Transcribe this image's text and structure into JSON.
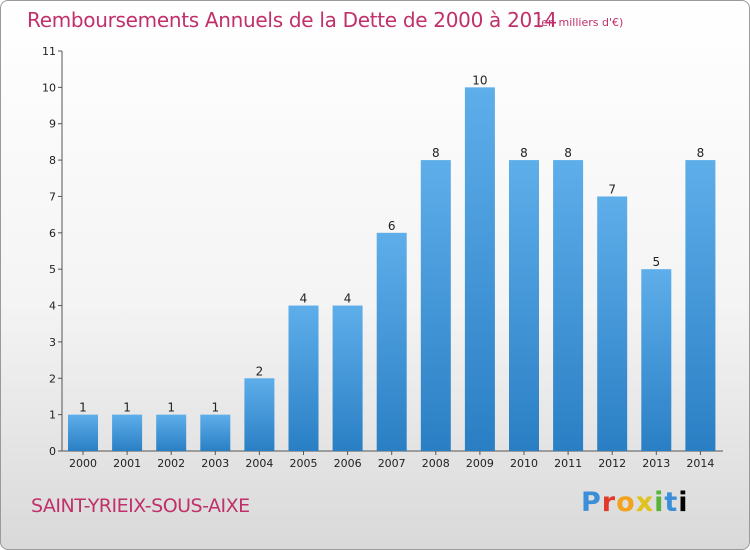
{
  "title": "Remboursements Annuels de la Dette de 2000 à 2014",
  "unit_note": "(en milliers d'€)",
  "commune": "SAINT-YRIEIX-SOUS-AIXE",
  "brand": {
    "letters": [
      "P",
      "r",
      "o",
      "x",
      "i",
      "t",
      "i"
    ]
  },
  "colors": {
    "title": "#c0306a",
    "bar_top": "#5eaeea",
    "bar_bottom": "#2a7fc4"
  },
  "chart_data": {
    "type": "bar",
    "title": "Remboursements Annuels de la Dette de 2000 à 2014",
    "xlabel": "",
    "ylabel": "",
    "ylim": [
      0,
      11
    ],
    "yticks": [
      "0",
      "1",
      "2",
      "3",
      "4",
      "5",
      "6",
      "7",
      "8",
      "9",
      "10",
      "11"
    ],
    "grid": false,
    "categories": [
      "2000",
      "2001",
      "2002",
      "2003",
      "2004",
      "2005",
      "2006",
      "2007",
      "2008",
      "2009",
      "2010",
      "2011",
      "2012",
      "2013",
      "2014"
    ],
    "values": [
      1,
      1,
      1,
      1,
      2,
      4,
      4,
      6,
      8,
      10,
      8,
      8,
      7,
      5,
      8
    ],
    "value_labels": [
      "1",
      "1",
      "1",
      "1",
      "2",
      "4",
      "4",
      "6",
      "8",
      "10",
      "8",
      "8",
      "7",
      "5",
      "8"
    ]
  }
}
